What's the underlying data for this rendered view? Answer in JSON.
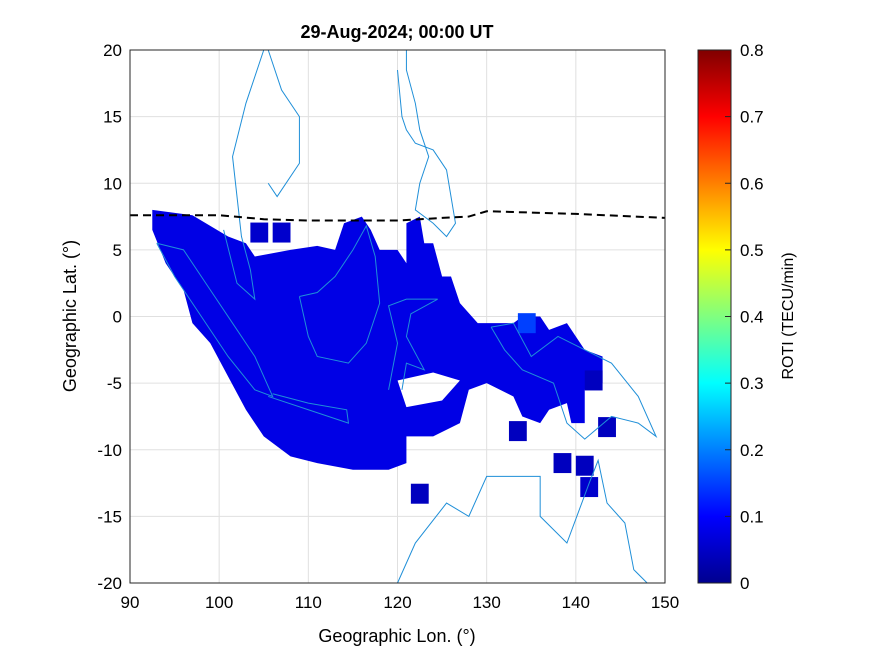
{
  "chart_data": {
    "type": "heatmap",
    "title": "29-Aug-2024; 00:00 UT",
    "xlabel": "Geographic Lon. (°)",
    "ylabel": "Geographic Lat. (°)",
    "xlim": [
      90,
      150
    ],
    "ylim": [
      -20,
      20
    ],
    "xticks": [
      "90",
      "100",
      "110",
      "120",
      "130",
      "140",
      "150"
    ],
    "yticks": [
      "20",
      "15",
      "10",
      "5",
      "0",
      "-5",
      "-10",
      "-15",
      "-20"
    ],
    "grid": true,
    "colorbar": {
      "label": "ROTI (TECU/min)",
      "range": [
        0,
        0.8
      ],
      "ticks": [
        "0",
        "0.1",
        "0.2",
        "0.3",
        "0.4",
        "0.5",
        "0.6",
        "0.7",
        "0.8"
      ],
      "colormap": "jet"
    },
    "roti_region": {
      "typical_value": 0.08,
      "outline": [
        [
          92.5,
          8
        ],
        [
          97,
          7.6
        ],
        [
          101,
          6
        ],
        [
          103,
          5.5
        ],
        [
          104,
          4.5
        ],
        [
          108,
          5
        ],
        [
          111,
          5.3
        ],
        [
          113,
          5
        ],
        [
          114,
          7
        ],
        [
          116,
          7.5
        ],
        [
          117,
          6.5
        ],
        [
          118,
          5
        ],
        [
          120,
          5
        ],
        [
          121,
          4
        ],
        [
          121,
          7
        ],
        [
          122.5,
          7.5
        ],
        [
          123,
          5.5
        ],
        [
          124,
          5.5
        ],
        [
          125,
          3
        ],
        [
          126,
          3
        ],
        [
          127,
          1
        ],
        [
          129,
          -0.5
        ],
        [
          133,
          -0.5
        ],
        [
          134,
          0
        ],
        [
          136,
          0
        ],
        [
          137,
          -1
        ],
        [
          139,
          -0.5
        ],
        [
          140,
          -1.5
        ],
        [
          141,
          -2.5
        ],
        [
          143,
          -3
        ],
        [
          143,
          -5
        ],
        [
          141,
          -5.5
        ],
        [
          141,
          -8
        ],
        [
          139.5,
          -8
        ],
        [
          139,
          -6.5
        ],
        [
          137,
          -7
        ],
        [
          136,
          -8
        ],
        [
          134,
          -7.5
        ],
        [
          133,
          -6
        ],
        [
          130,
          -5
        ],
        [
          128,
          -5.5
        ],
        [
          127,
          -8
        ],
        [
          124,
          -9
        ],
        [
          121,
          -9
        ],
        [
          121,
          -11
        ],
        [
          119,
          -11.5
        ],
        [
          115,
          -11.5
        ],
        [
          111,
          -11
        ],
        [
          108,
          -10.5
        ],
        [
          105,
          -9
        ],
        [
          103,
          -7
        ],
        [
          101,
          -4.5
        ],
        [
          99,
          -2
        ],
        [
          97,
          -0.5
        ],
        [
          96,
          2
        ],
        [
          94,
          4
        ],
        [
          92.5,
          6.5
        ]
      ],
      "hole": [
        [
          120,
          -4.8
        ],
        [
          124,
          -4.2
        ],
        [
          127,
          -4.8
        ],
        [
          125,
          -6.3
        ],
        [
          121,
          -6.8
        ]
      ],
      "cells": [
        [
          104.5,
          6.3,
          0.06
        ],
        [
          107,
          6.3,
          0.06
        ],
        [
          133.5,
          -8.6,
          0.05
        ],
        [
          138.5,
          -11,
          0.05
        ],
        [
          141,
          -11.2,
          0.05
        ],
        [
          143.5,
          -8.3,
          0.05
        ],
        [
          141.5,
          -12.8,
          0.06
        ],
        [
          122.5,
          -13.3,
          0.05
        ],
        [
          142,
          -4.8,
          0.05
        ],
        [
          134.5,
          -0.5,
          0.15
        ]
      ]
    },
    "magnetic_equator": [
      [
        90,
        7.6
      ],
      [
        100,
        7.6
      ],
      [
        105,
        7.3
      ],
      [
        110,
        7.2
      ],
      [
        120,
        7.2
      ],
      [
        125,
        7.4
      ],
      [
        128,
        7.5
      ],
      [
        130,
        7.9
      ],
      [
        140,
        7.7
      ],
      [
        150,
        7.4
      ]
    ],
    "coastlines": [
      [
        [
          93,
          5.5
        ],
        [
          96,
          5
        ],
        [
          99,
          2
        ],
        [
          102,
          -1
        ],
        [
          104,
          -3
        ],
        [
          106,
          -6
        ],
        [
          104,
          -5.5
        ],
        [
          101,
          -3
        ],
        [
          98,
          0
        ],
        [
          95,
          3
        ],
        [
          93,
          5.5
        ]
      ],
      [
        [
          100.5,
          6.5
        ],
        [
          102,
          2.5
        ],
        [
          104,
          1.3
        ],
        [
          103.5,
          3.5
        ],
        [
          102.5,
          6
        ],
        [
          101.5,
          12
        ],
        [
          103,
          16
        ],
        [
          105,
          20
        ]
      ],
      [
        [
          105.5,
          -6
        ],
        [
          110,
          -7
        ],
        [
          114.5,
          -8
        ],
        [
          114.3,
          -7
        ],
        [
          110,
          -6.5
        ],
        [
          106,
          -5.8
        ]
      ],
      [
        [
          109,
          1.5
        ],
        [
          110,
          -1.5
        ],
        [
          111,
          -3
        ],
        [
          114.5,
          -3.5
        ],
        [
          116.5,
          -2
        ],
        [
          118,
          1
        ],
        [
          117.5,
          4.5
        ],
        [
          116.5,
          6.8
        ],
        [
          115,
          5
        ],
        [
          113,
          3
        ],
        [
          111,
          1.8
        ],
        [
          109,
          1.5
        ]
      ],
      [
        [
          119,
          -5.5
        ],
        [
          120,
          -2
        ],
        [
          119,
          0.8
        ],
        [
          121,
          1.3
        ],
        [
          124.5,
          1.3
        ],
        [
          121.5,
          0.2
        ],
        [
          121,
          -1.5
        ],
        [
          123,
          -4
        ],
        [
          121,
          -3.5
        ],
        [
          120.5,
          -5.5
        ]
      ],
      [
        [
          130.5,
          -0.8
        ],
        [
          133,
          -0.5
        ],
        [
          135,
          -3
        ],
        [
          138,
          -1.5
        ],
        [
          141,
          -2.5
        ],
        [
          144,
          -3.5
        ],
        [
          147,
          -6
        ],
        [
          149,
          -9
        ],
        [
          147,
          -8
        ],
        [
          144,
          -7.5
        ],
        [
          141,
          -9.2
        ],
        [
          139,
          -8
        ],
        [
          137.5,
          -5
        ],
        [
          134,
          -4
        ],
        [
          132,
          -2.5
        ],
        [
          130.5,
          -0.8
        ]
      ],
      [
        [
          120,
          -20
        ],
        [
          122,
          -17
        ],
        [
          125.5,
          -14
        ],
        [
          128,
          -15
        ],
        [
          130,
          -12
        ],
        [
          133,
          -12
        ],
        [
          136,
          -12
        ],
        [
          136,
          -15
        ],
        [
          139,
          -17
        ],
        [
          141.5,
          -12.5
        ],
        [
          142.5,
          -10.8
        ],
        [
          143.5,
          -14
        ],
        [
          145.5,
          -15.5
        ],
        [
          146.5,
          -19
        ],
        [
          148,
          -20
        ]
      ],
      [
        [
          120,
          18.5
        ],
        [
          120.5,
          15
        ],
        [
          121,
          14
        ],
        [
          122,
          13
        ],
        [
          124,
          12.5
        ],
        [
          125.5,
          11
        ],
        [
          126,
          9
        ],
        [
          126.5,
          7
        ],
        [
          125.5,
          6
        ],
        [
          124,
          7
        ],
        [
          122,
          8
        ],
        [
          122.5,
          10
        ],
        [
          123.5,
          12
        ],
        [
          122.5,
          14
        ],
        [
          122,
          16
        ],
        [
          121,
          18.5
        ],
        [
          121,
          20
        ]
      ],
      [
        [
          105.5,
          10
        ],
        [
          106.5,
          9
        ],
        [
          109,
          11.5
        ],
        [
          109,
          15
        ],
        [
          107,
          17
        ],
        [
          105.5,
          20
        ]
      ]
    ]
  }
}
